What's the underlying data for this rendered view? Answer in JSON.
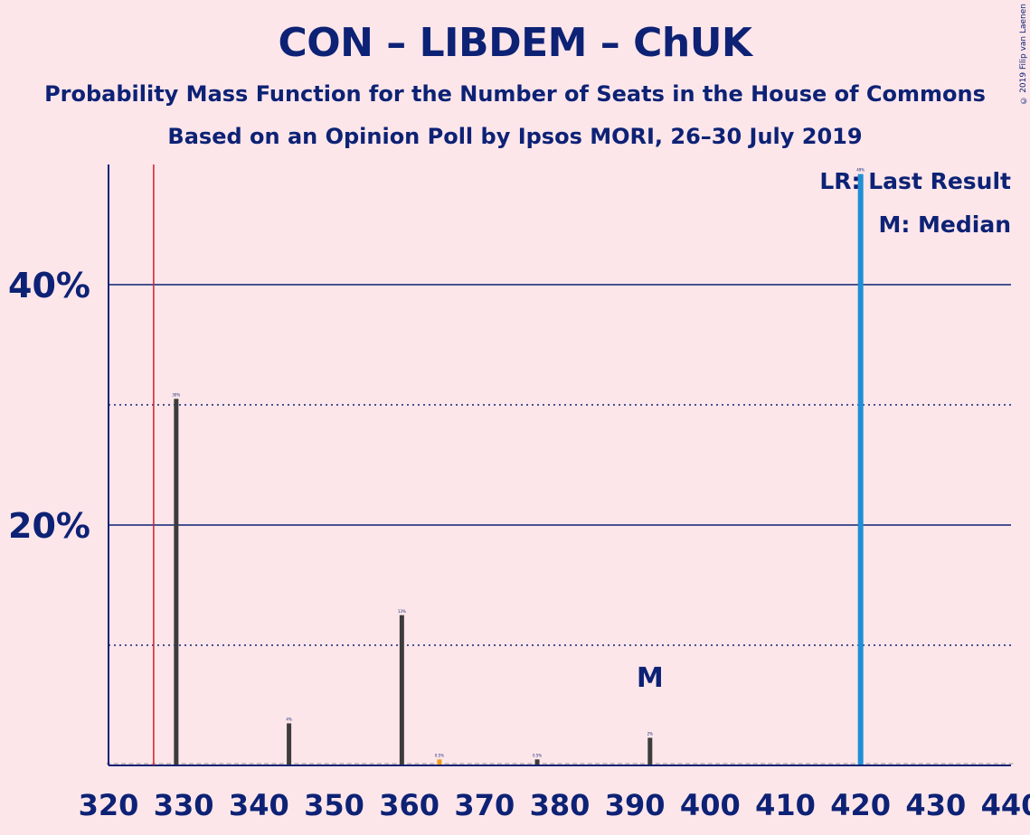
{
  "header": {
    "title": "CON – LIBDEM – ChUK",
    "subtitle": "Probability Mass Function for the Number of Seats in the House of Commons",
    "subtitle2": "Based on an Opinion Poll by Ipsos MORI, 26–30 July 2019",
    "copyright": "© 2019 Filip van Laenen"
  },
  "legend": {
    "lr": "LR: Last Result",
    "median": "M: Median",
    "median_marker": "M"
  },
  "colors": {
    "background": "#fde6ea",
    "text": "#0d2275",
    "bar": "#3c3c3c",
    "bar_highlight": "#f29b1a",
    "bar_majority": "#1f8fd6",
    "last_result_line": "#d21d2b"
  },
  "chart_data": {
    "type": "bar",
    "xlim": [
      320,
      440
    ],
    "ylim": [
      0,
      50
    ],
    "x_ticks": [
      320,
      330,
      340,
      350,
      360,
      370,
      380,
      390,
      400,
      410,
      420,
      430,
      440
    ],
    "x_tick_labels": [
      "320",
      "330",
      "340",
      "350",
      "360",
      "370",
      "380",
      "390",
      "400",
      "410",
      "420",
      "430",
      "440"
    ],
    "y_ticks_solid": [
      20,
      40
    ],
    "y_tick_labels": [
      "20%",
      "40%"
    ],
    "y_ticks_dotted": [
      10,
      30
    ],
    "last_result": 326,
    "median": 392,
    "bars": [
      {
        "x": 329,
        "value": 30.5,
        "label": "30%"
      },
      {
        "x": 344,
        "value": 3.5,
        "label": "4%"
      },
      {
        "x": 359,
        "value": 12.5,
        "label": "13%"
      },
      {
        "x": 364,
        "value": 0.5,
        "label": "0.5%"
      },
      {
        "x": 377,
        "value": 0.5,
        "label": "0.5%"
      },
      {
        "x": 392,
        "value": 2.3,
        "label": "2%"
      },
      {
        "x": 420,
        "value": 49.2,
        "label": "49%"
      }
    ]
  }
}
